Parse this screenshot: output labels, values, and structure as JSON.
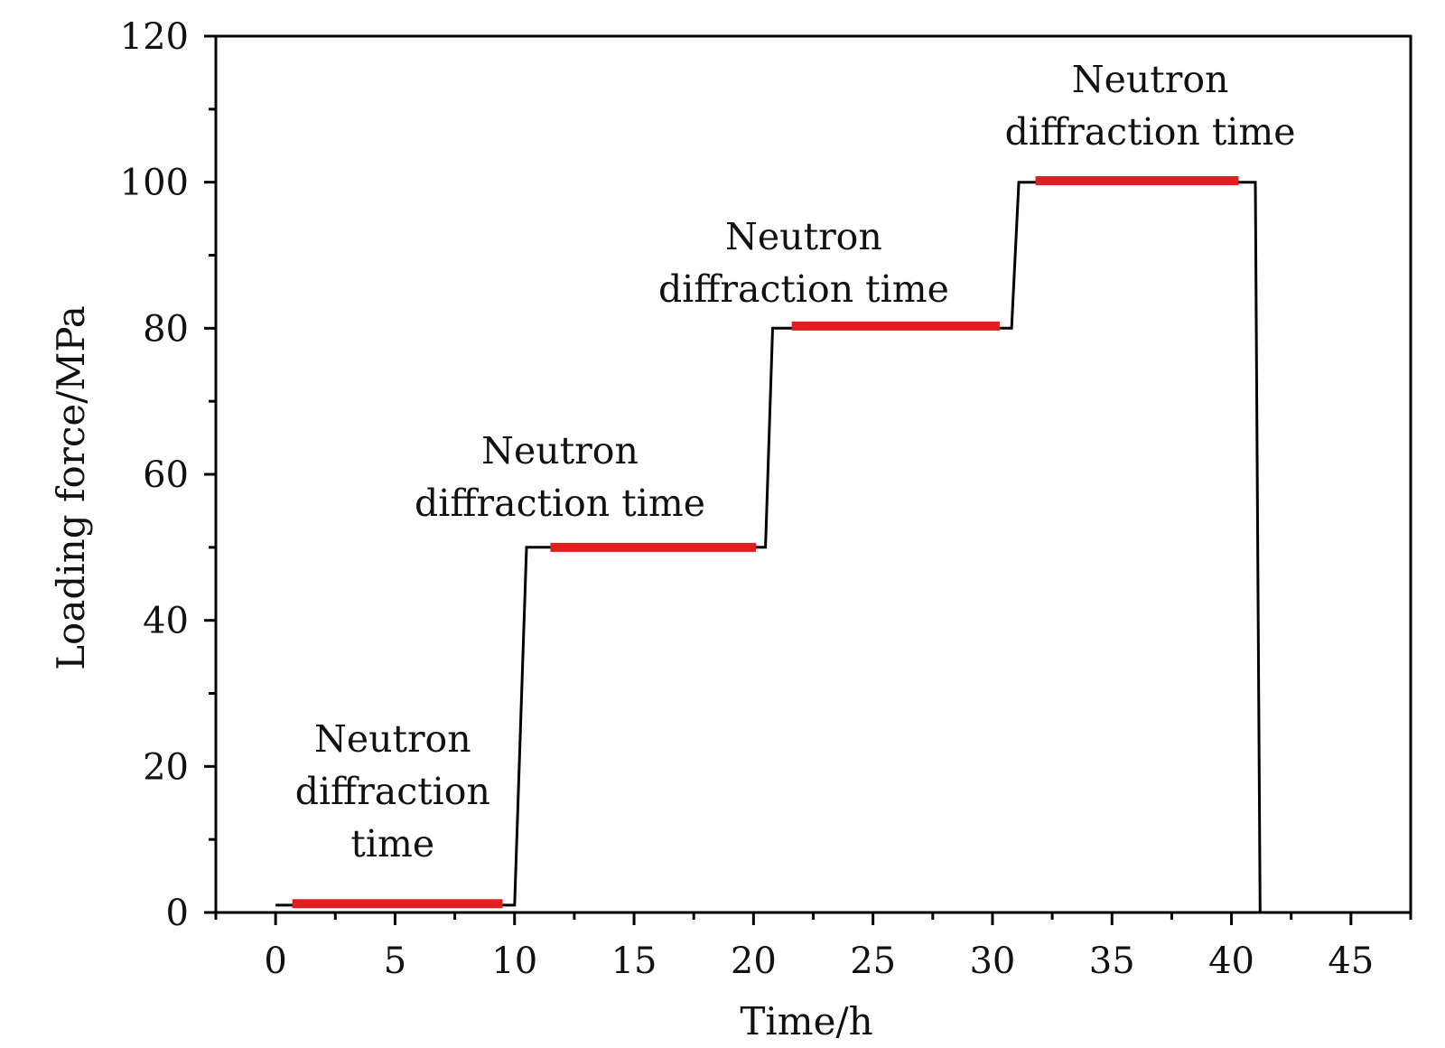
{
  "chart_data": {
    "type": "line",
    "title": "",
    "xlabel": "Time/h",
    "ylabel": "Loading force/MPa",
    "xlim": [
      -2.5,
      47.5
    ],
    "ylim": [
      0,
      120
    ],
    "xticks": [
      0,
      5,
      10,
      15,
      20,
      25,
      30,
      35,
      40,
      45
    ],
    "yticks": [
      0,
      20,
      40,
      60,
      80,
      100,
      120
    ],
    "grid": false,
    "legend": "none",
    "series": [
      {
        "color": "#000000",
        "x": [
          0,
          10,
          10.5,
          20.5,
          20.8,
          30.8,
          31.1,
          41.0,
          41.2
        ],
        "y": [
          1,
          1,
          50,
          50,
          80,
          80,
          100,
          100,
          0
        ]
      }
    ],
    "highlights": {
      "color": "#e02020",
      "segments": [
        {
          "x": [
            0.7,
            9.5
          ],
          "y": 1.2
        },
        {
          "x": [
            11.5,
            20.1
          ],
          "y": 50
        },
        {
          "x": [
            21.6,
            30.3
          ],
          "y": 80.3
        },
        {
          "x": [
            31.8,
            40.3
          ],
          "y": 100.2
        }
      ]
    },
    "annotations": [
      {
        "lines": [
          "Neutron",
          "diffraction",
          "time"
        ],
        "x": 4.9,
        "y": 22
      },
      {
        "lines": [
          "Neutron",
          "diffraction time"
        ],
        "x": 11.9,
        "y": 61.5
      },
      {
        "lines": [
          "Neutron",
          "diffraction time"
        ],
        "x": 22.1,
        "y": 90.8
      },
      {
        "lines": [
          "Neutron",
          "diffraction time"
        ],
        "x": 36.6,
        "y": 112.3
      }
    ]
  }
}
